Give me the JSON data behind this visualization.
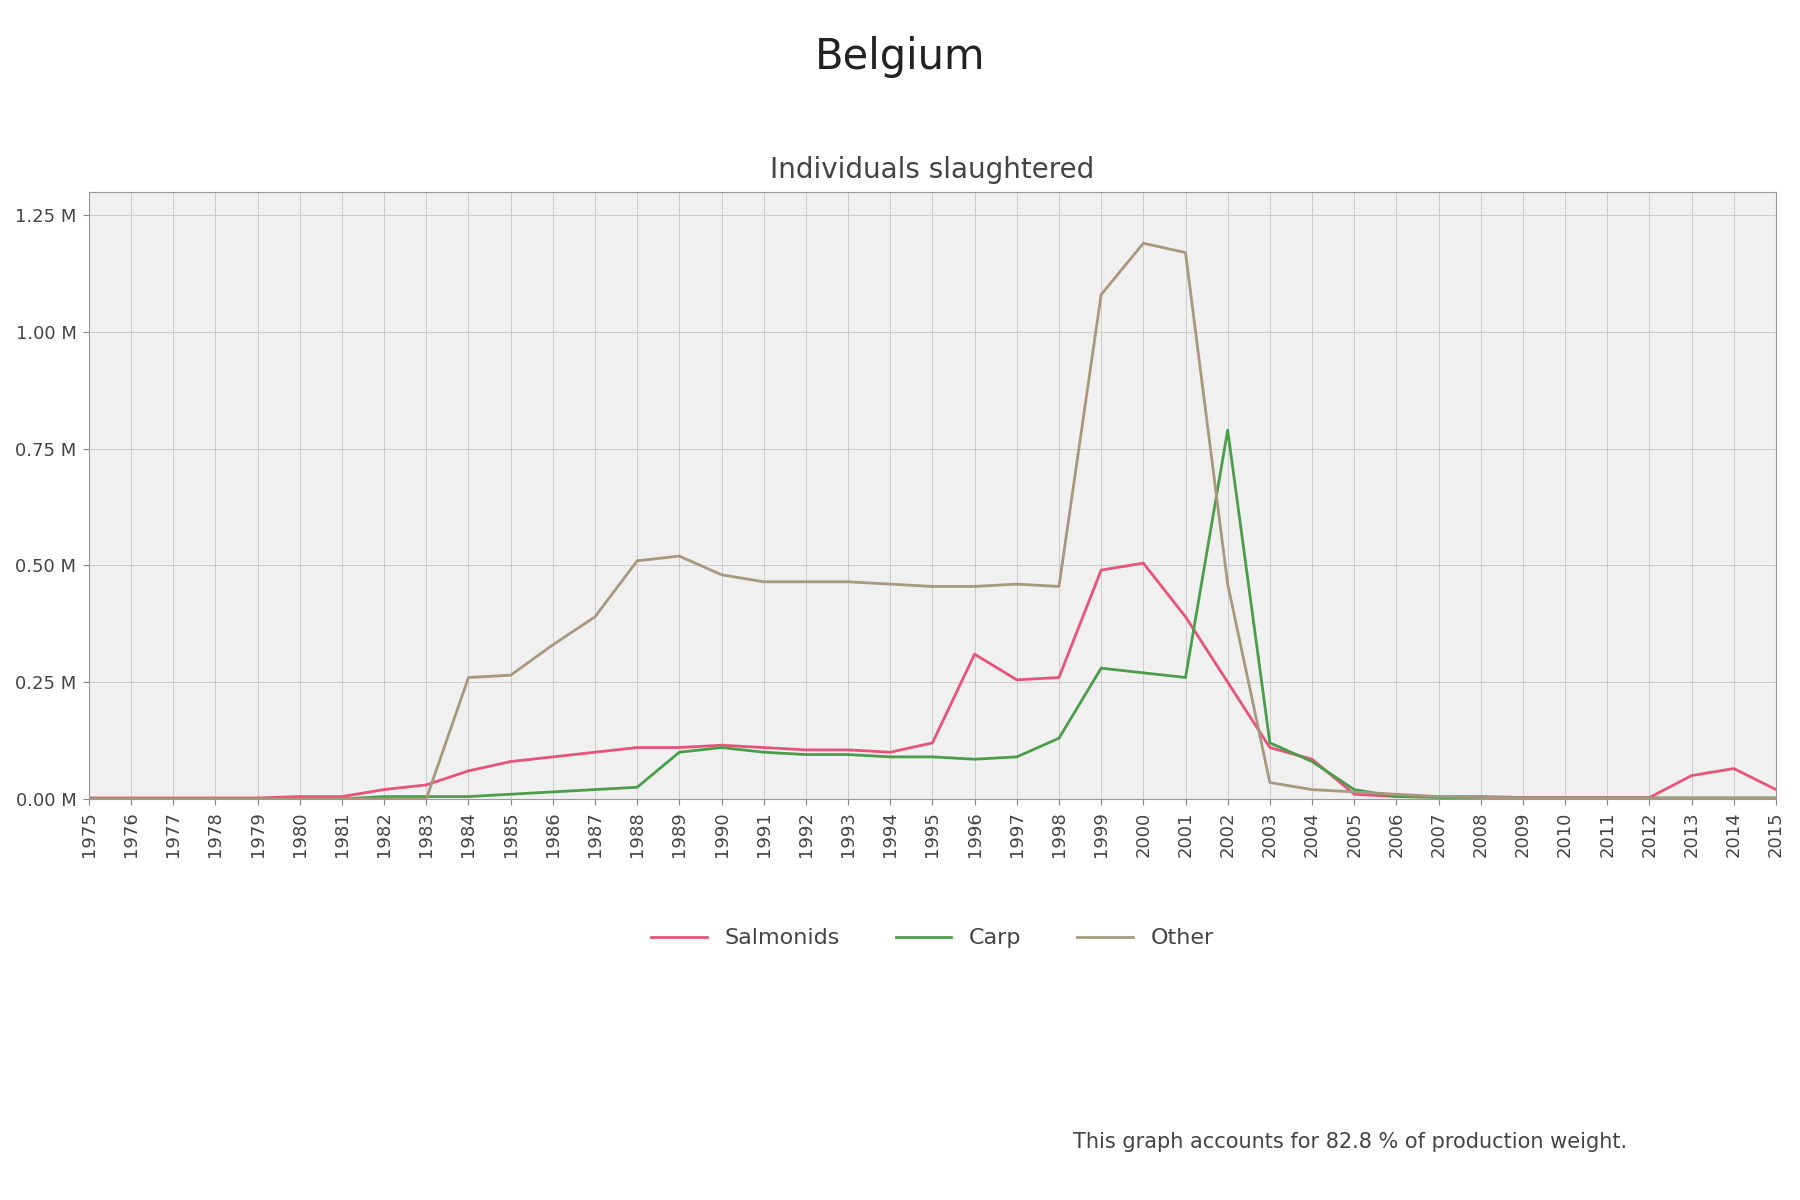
{
  "title": "Belgium",
  "subtitle": "Individuals slaughtered",
  "footer": "This graph accounts for 82.8 % of production weight.",
  "years": [
    1975,
    1976,
    1977,
    1978,
    1979,
    1980,
    1981,
    1982,
    1983,
    1984,
    1985,
    1986,
    1987,
    1988,
    1989,
    1990,
    1991,
    1992,
    1993,
    1994,
    1995,
    1996,
    1997,
    1998,
    1999,
    2000,
    2001,
    2002,
    2003,
    2004,
    2005,
    2006,
    2007,
    2008,
    2009,
    2010,
    2011,
    2012,
    2013,
    2014,
    2015
  ],
  "salmonids": [
    2000,
    2000,
    2000,
    2000,
    2000,
    5000,
    5000,
    20000,
    30000,
    60000,
    80000,
    90000,
    100000,
    110000,
    110000,
    115000,
    110000,
    105000,
    105000,
    100000,
    120000,
    310000,
    255000,
    260000,
    490000,
    505000,
    390000,
    250000,
    110000,
    85000,
    10000,
    5000,
    5000,
    5000,
    3000,
    3000,
    3000,
    3000,
    50000,
    65000,
    20000
  ],
  "carp": [
    0,
    0,
    0,
    0,
    0,
    0,
    0,
    5000,
    5000,
    5000,
    10000,
    15000,
    20000,
    25000,
    100000,
    110000,
    100000,
    95000,
    95000,
    90000,
    90000,
    85000,
    90000,
    130000,
    280000,
    270000,
    260000,
    790000,
    120000,
    80000,
    20000,
    5000,
    3000,
    2000,
    2000,
    2000,
    2000,
    2000,
    2000,
    2000,
    2000
  ],
  "other": [
    0,
    0,
    0,
    0,
    0,
    0,
    0,
    0,
    0,
    260000,
    265000,
    330000,
    390000,
    510000,
    520000,
    480000,
    465000,
    465000,
    465000,
    460000,
    455000,
    455000,
    460000,
    455000,
    1080000,
    1190000,
    1170000,
    460000,
    35000,
    20000,
    15000,
    10000,
    5000,
    3000,
    2000,
    2000,
    2000,
    2000,
    2000,
    2000,
    2000
  ],
  "salmonids_color": "#e8537a",
  "carp_color": "#4a9e4a",
  "other_color": "#a89880",
  "background_color": "#f0f0f0",
  "grid_color": "#cccccc",
  "ylim": [
    0,
    1300000
  ],
  "yticks": [
    0,
    250000,
    500000,
    750000,
    1000000,
    1250000
  ],
  "ytick_labels": [
    "0.00 M",
    "0.25 M",
    "0.50 M",
    "0.75 M",
    "1.00 M",
    "1.25 M"
  ],
  "title_fontsize": 30,
  "subtitle_fontsize": 20,
  "tick_fontsize": 13,
  "legend_fontsize": 16,
  "footer_fontsize": 15
}
